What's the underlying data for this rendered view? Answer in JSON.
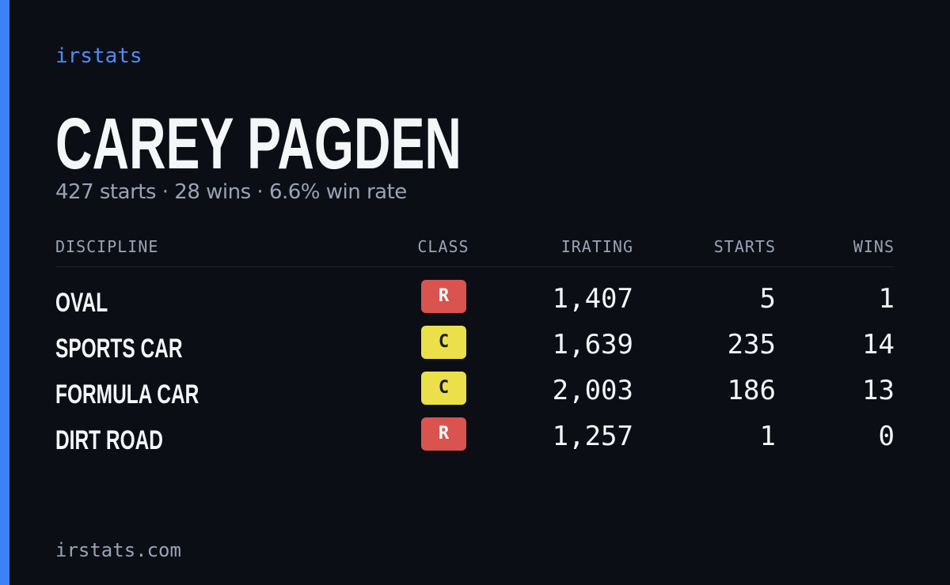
{
  "brand": "irstats",
  "driver": {
    "name": "CAREY PAGDEN",
    "summary": "427 starts · 28 wins · 6.6% win rate"
  },
  "table": {
    "headers": [
      "DISCIPLINE",
      "CLASS",
      "IRATING",
      "STARTS",
      "WINS"
    ],
    "rows": [
      {
        "discipline": "OVAL",
        "class": {
          "label": "R",
          "color": "#d9534f"
        },
        "irating": "1,407",
        "starts": "5",
        "wins": "1"
      },
      {
        "discipline": "SPORTS CAR",
        "class": {
          "label": "C",
          "color": "#ebe04a"
        },
        "irating": "1,639",
        "starts": "235",
        "wins": "14"
      },
      {
        "discipline": "FORMULA CAR",
        "class": {
          "label": "C",
          "color": "#ebe04a"
        },
        "irating": "2,003",
        "starts": "186",
        "wins": "13"
      },
      {
        "discipline": "DIRT ROAD",
        "class": {
          "label": "R",
          "color": "#d9534f"
        },
        "irating": "1,257",
        "starts": "1",
        "wins": "0"
      }
    ]
  },
  "footer": "irstats.com"
}
